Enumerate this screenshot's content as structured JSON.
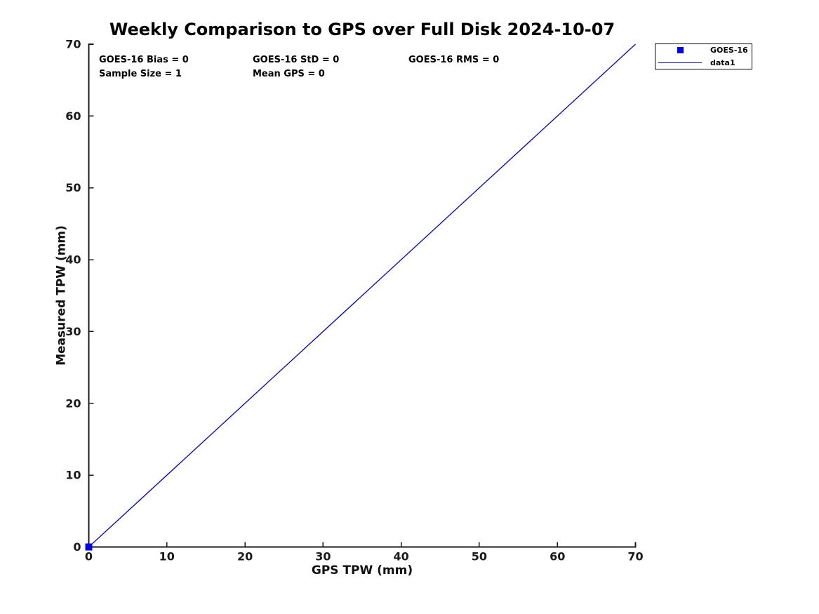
{
  "figure": {
    "background": "#ffffff"
  },
  "chart_data": {
    "type": "scatter",
    "title": "Weekly Comparison to GPS over Full Disk 2024-10-07",
    "xlabel": "GPS TPW (mm)",
    "ylabel": "Measured TPW (mm)",
    "xlim": [
      0,
      70
    ],
    "ylim": [
      0,
      70
    ],
    "xticks": [
      0,
      10,
      20,
      30,
      40,
      50,
      60,
      70
    ],
    "yticks": [
      0,
      10,
      20,
      30,
      40,
      50,
      60,
      70
    ],
    "grid": false,
    "axis_color": "#1a1a1a",
    "tick_label_color": "#1a1a1a",
    "series": [
      {
        "name": "GOES-16",
        "type": "scatter",
        "marker": "square",
        "color": "#0000ee",
        "marker_size": 10,
        "points": [
          [
            0,
            0
          ]
        ]
      },
      {
        "name": "data1",
        "type": "line",
        "color": "#0000cc",
        "line_width": 1.3,
        "points": [
          [
            0,
            0
          ],
          [
            70,
            70
          ]
        ]
      }
    ],
    "annotations": [
      {
        "text": "GOES-16 Bias = 0"
      },
      {
        "text": "GOES-16 StD = 0"
      },
      {
        "text": "GOES-16 RMS = 0"
      },
      {
        "text": "Sample Size = 1"
      },
      {
        "text": "Mean GPS = 0"
      }
    ],
    "legend": {
      "position": "outside-top-right",
      "entries": [
        {
          "label": "GOES-16",
          "swatch": "square-marker",
          "color": "#0000ee"
        },
        {
          "label": "data1",
          "swatch": "line",
          "color": "#0000cc"
        }
      ]
    }
  }
}
